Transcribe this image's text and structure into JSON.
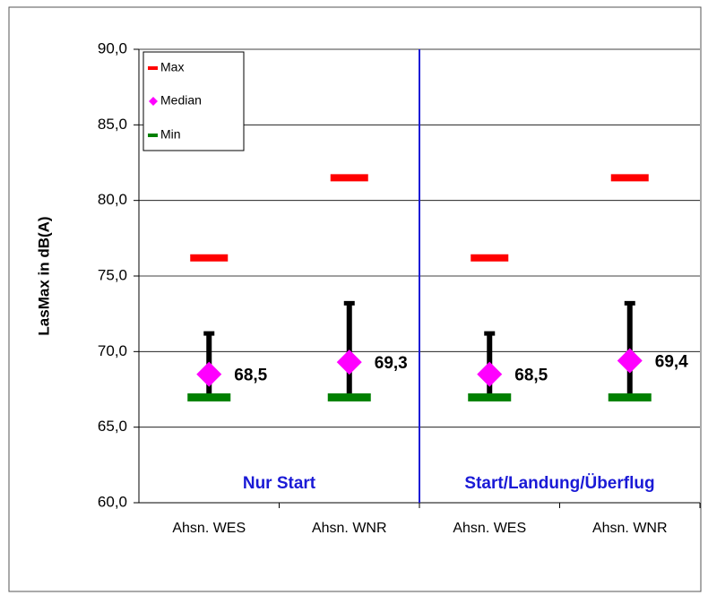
{
  "chart_data": {
    "type": "range",
    "y_label": "LasMax in dB(A)",
    "categories": [
      "Ahsn. WES",
      "Ahsn. WNR",
      "Ahsn. WES",
      "Ahsn. WNR"
    ],
    "series": [
      {
        "name": "Max",
        "color": "#ff0000",
        "values": [
          76.2,
          81.5,
          76.2,
          81.5
        ]
      },
      {
        "name": "Median",
        "color": "#ff00ff",
        "values": [
          68.5,
          69.3,
          68.5,
          69.4
        ],
        "value_labels": [
          "68,5",
          "69,3",
          "68,5",
          "69,4"
        ],
        "error_plus": [
          2.7,
          3.9,
          2.7,
          3.8
        ],
        "error_minus": [
          1.5,
          2.3,
          1.5,
          2.4
        ],
        "error_color": "#000000"
      },
      {
        "name": "Min",
        "color": "#008000",
        "values": [
          67.0,
          67.0,
          67.0,
          67.0
        ]
      }
    ],
    "annotations": [
      "Nur Start",
      "Start/Landung/Überflug"
    ],
    "annotation_color": "#1a1ad6",
    "ylim": [
      60,
      90
    ],
    "yticks": [
      {
        "value": 60,
        "label": "60,0"
      },
      {
        "value": 65,
        "label": "65,0"
      },
      {
        "value": 70,
        "label": "70,0"
      },
      {
        "value": 75,
        "label": "75,0"
      },
      {
        "value": 80,
        "label": "80,0"
      },
      {
        "value": 85,
        "label": "85,0"
      },
      {
        "value": 90,
        "label": "90,0"
      }
    ],
    "grid": true,
    "legend": "top-left"
  }
}
